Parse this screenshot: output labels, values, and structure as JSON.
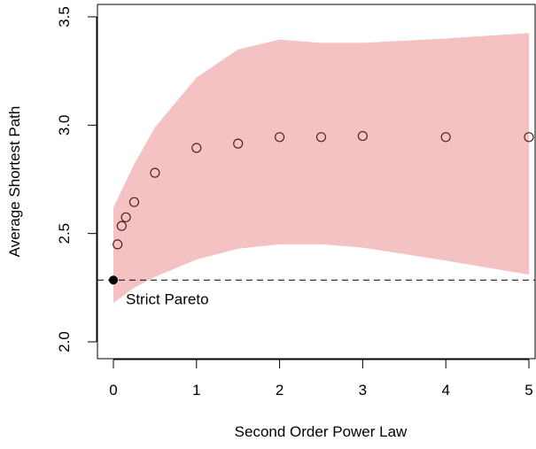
{
  "chart_data": {
    "type": "scatter",
    "xlabel": "Second Order Power Law",
    "ylabel": "Average Shortest Path",
    "xlim": [
      0,
      5
    ],
    "ylim": [
      2.0,
      3.5
    ],
    "x_ticks": [
      "0",
      "1",
      "2",
      "3",
      "4",
      "5"
    ],
    "y_ticks": [
      "2.0",
      "2.5",
      "3.0",
      "3.5"
    ],
    "series": [
      {
        "x": [
          0.05,
          0.1,
          0.15,
          0.25,
          0.5,
          1,
          1.5,
          2,
          2.5,
          3,
          4,
          5
        ],
        "y": [
          2.45,
          2.535,
          2.575,
          2.645,
          2.78,
          2.895,
          2.915,
          2.945,
          2.945,
          2.95,
          2.945,
          2.945
        ],
        "marker": "open-circle"
      }
    ],
    "band": {
      "x": [
        0,
        0.25,
        0.5,
        1,
        1.5,
        2,
        2.5,
        3,
        4,
        5
      ],
      "upper": [
        2.62,
        2.82,
        2.99,
        3.22,
        3.35,
        3.395,
        3.38,
        3.38,
        3.4,
        3.425
      ],
      "lower": [
        2.18,
        2.25,
        2.3,
        2.38,
        2.43,
        2.45,
        2.45,
        2.435,
        2.375,
        2.31
      ],
      "color": "#f4c2c2"
    },
    "reference": {
      "label": "Strict Pareto",
      "x": 0,
      "y": 2.285,
      "line_style": "dashed"
    }
  }
}
